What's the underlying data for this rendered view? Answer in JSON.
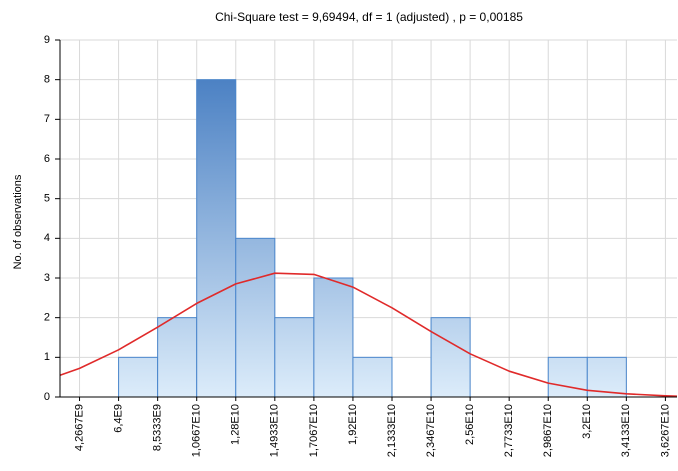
{
  "chart_data": {
    "type": "histogram",
    "title": "Chi-Square test = 9,69494, df = 1 (adjusted) , p = 0,00185",
    "y_label": "No. of observations",
    "bins": [
      6400000000,
      8533300000,
      10667000000,
      12800000000,
      14933000000,
      17067000000,
      19200000000,
      21333000000,
      23467000000,
      25600000000,
      27733000000,
      29867000000,
      32000000000,
      34133000000
    ],
    "values": [
      1,
      2,
      8,
      4,
      2,
      3,
      1,
      0,
      2,
      0,
      0,
      1,
      1
    ],
    "color": "#4a86cc",
    "xlim": [
      3200000000,
      36900000000
    ],
    "ylim": [
      0,
      9
    ],
    "xticks": [
      {
        "value": 4266700000,
        "label": "4,2667E9"
      },
      {
        "value": 6400000000,
        "label": "6,4E9"
      },
      {
        "value": 8533300000,
        "label": "8,5333E9"
      },
      {
        "value": 10667000000,
        "label": "1,0667E10"
      },
      {
        "value": 12800000000,
        "label": "1,28E10"
      },
      {
        "value": 14933000000,
        "label": "1,4933E10"
      },
      {
        "value": 17067000000,
        "label": "1,7067E10"
      },
      {
        "value": 19200000000,
        "label": "1,92E10"
      },
      {
        "value": 21333000000,
        "label": "2,1333E10"
      },
      {
        "value": 23467000000,
        "label": "2,3467E10"
      },
      {
        "value": 25600000000,
        "label": "2,56E10"
      },
      {
        "value": 27733000000,
        "label": "2,7733E10"
      },
      {
        "value": 29867000000,
        "label": "2,9867E10"
      },
      {
        "value": 32000000000,
        "label": "3,2E10"
      },
      {
        "value": 34133000000,
        "label": "3,4133E10"
      },
      {
        "value": 36267000000,
        "label": "3,6267E10"
      }
    ],
    "yticks": [
      0,
      1,
      2,
      3,
      4,
      5,
      6,
      7,
      8,
      9
    ],
    "grid": true,
    "fit": {
      "color": "#e02a2a",
      "x": [
        3200000000,
        4266700000,
        6400000000,
        8533300000,
        10667000000,
        12800000000,
        14933000000,
        17067000000,
        19200000000,
        21333000000,
        23467000000,
        25600000000,
        27733000000,
        29867000000,
        32000000000,
        34133000000,
        36267000000,
        36900000000
      ],
      "values": [
        0.55,
        0.72,
        1.19,
        1.76,
        2.36,
        2.85,
        3.12,
        3.09,
        2.77,
        2.25,
        1.65,
        1.09,
        0.65,
        0.35,
        0.17,
        0.08,
        0.03,
        0.02
      ]
    }
  }
}
